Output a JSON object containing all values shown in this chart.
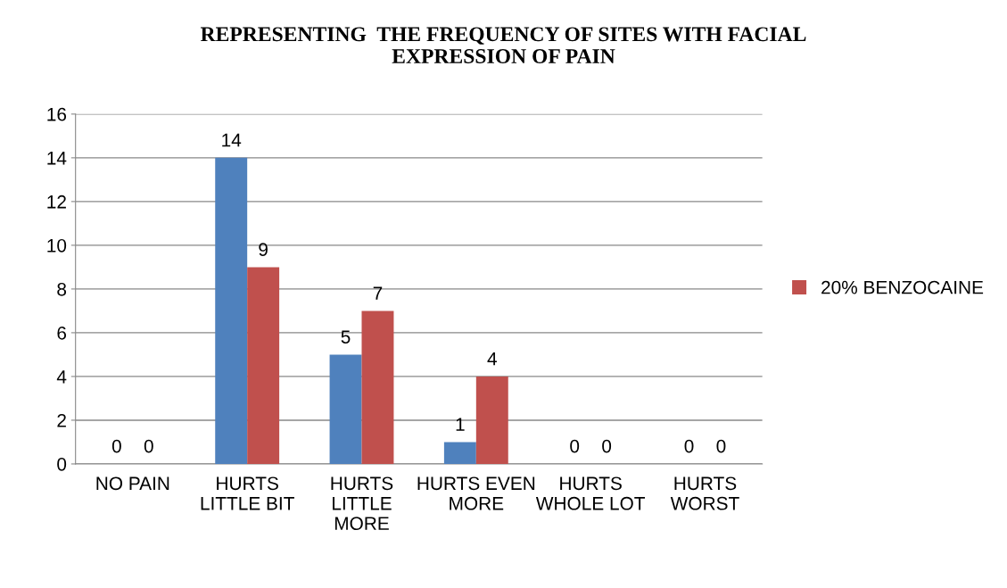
{
  "chart_data": {
    "type": "bar",
    "title": "REPRESENTING  THE FREQUENCY OF SITES WITH FACIAL\nEXPRESSION OF PAIN",
    "categories": [
      "NO PAIN",
      "HURTS LITTLE BIT",
      "HURTS LITTLE MORE",
      "HURTS EVEN MORE",
      "HURTS WHOLE LOT",
      "HURTS WORST"
    ],
    "series": [
      {
        "color": "#4f81bd",
        "values": [
          0,
          14,
          5,
          1,
          0,
          0
        ]
      },
      {
        "name": "20% BENZOCAINE",
        "color": "#c0504d",
        "values": [
          0,
          9,
          7,
          4,
          0,
          0
        ]
      }
    ],
    "ylim": [
      0,
      16
    ],
    "yticks": [
      0,
      2,
      4,
      6,
      8,
      10,
      12,
      14,
      16
    ],
    "grid": "y",
    "legend": "right",
    "data_labels": true
  }
}
